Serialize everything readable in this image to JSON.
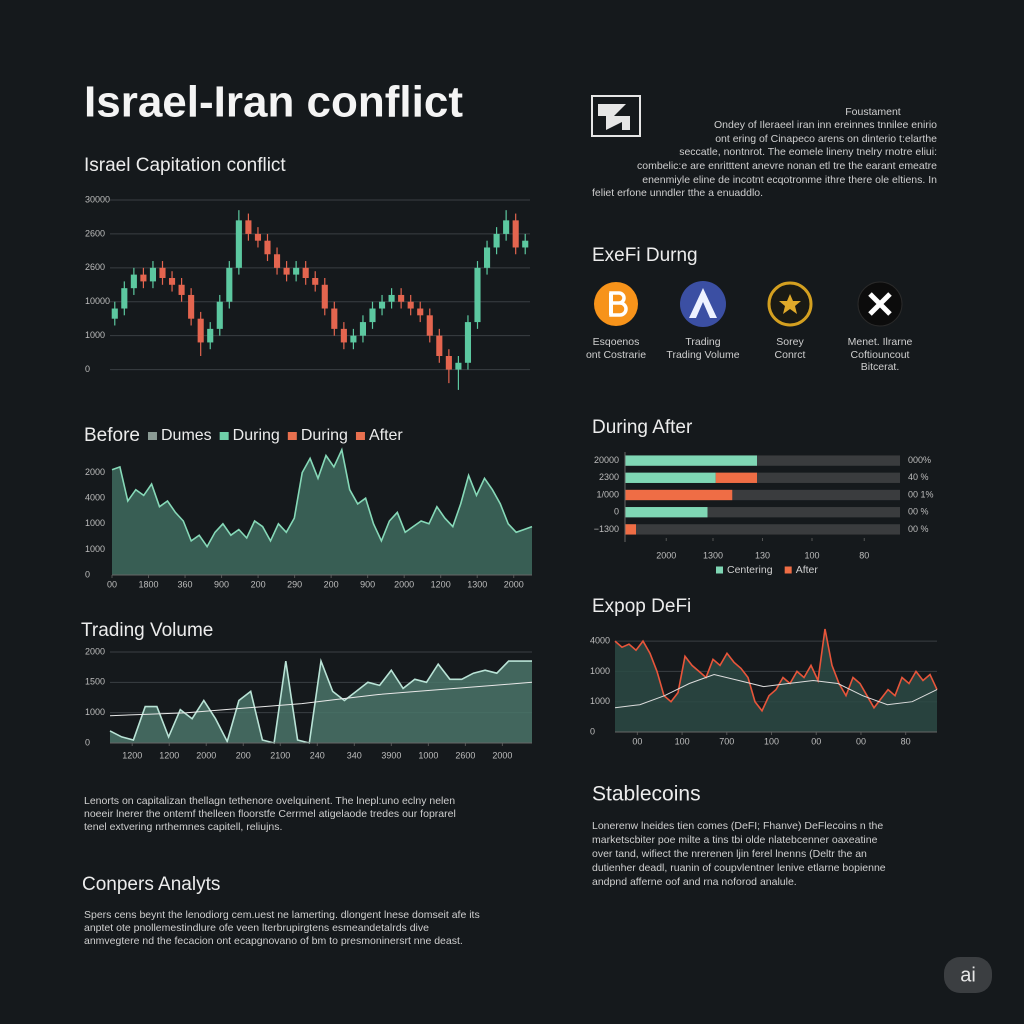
{
  "title": "Israel-Iran conflict",
  "intro": {
    "heading": "Foustament",
    "lines": [
      "Ondey of Ileraeel iran inn ereinnes tnnilee enirio",
      "ont ering of Cinapeco arens on dinterio t:elarthe",
      "seccatle, nontnrot. The eomele lineny tnelry rnotre eliui:",
      "combelic:e are enritttent anevre nonan etl tre the earant emeatre",
      "enenmiyle eline de incotnt ecqotronme ithre there ole eltiens. In",
      "feliet erfone unndler tthe a enuaddlo."
    ]
  },
  "icons_heading": "ExeFi Durng",
  "icons": [
    {
      "lines": [
        "Esqoenos",
        "ont Costrarie"
      ]
    },
    {
      "lines": [
        "Trading",
        "Trading Volume"
      ]
    },
    {
      "lines": [
        "Sorey",
        "Conrct"
      ]
    },
    {
      "lines": [
        "Menet. Ilrarne",
        "Coftiouncout",
        "Bitcerat."
      ]
    }
  ],
  "notes": {
    "lines": [
      "Lenorts on capitalizan thellagn tethenore ovelquinent. The lnepl:uno eclny nelen",
      "noeeir lnerer the ontemf thelleen floorstfe Cerrmel atigelaode tredes our foprarel",
      "tenel extvering nrthemnes capitell, reliujns."
    ]
  },
  "analysis": {
    "heading": "Conpers Analyts",
    "lines": [
      "Spers cens beynt the lenodiorg cem.uest ne lamerting. dlongent lnese domseit afe its",
      "anptet ote pnollemestindlure ofe veen lterbrupirgtens esmeandetalrds dive",
      "anmvegtere nd the fecacion ont ecapgnovano of bm to presmoninersrt nne deast."
    ]
  },
  "stablecoins": {
    "heading": "Stablecoins",
    "lines": [
      "Lonerenw lneides tien comes (DeFI; Fhanve) DeFlecoins n the",
      "marketscbiter poe milte a tins tbi olde nlatebcenner oaxeatine",
      "over tand, wifiect the nrerenen ljin ferel lnenns (Deltr the an",
      "dutienher deadl, ruanin of coupvlentner lenive etlarne bopienne",
      "andpnd afferne oof and rna noforod analule."
    ]
  },
  "badge": "ai",
  "chart_data": [
    {
      "type": "candlestick",
      "title": "Israel Capitation conflict",
      "open": [
        15,
        18,
        24,
        28,
        26,
        30,
        27,
        25,
        22,
        15,
        8,
        12,
        20,
        30,
        44,
        40,
        38,
        34,
        30,
        28,
        30,
        27,
        25,
        18,
        12,
        8,
        10,
        14,
        18,
        20,
        22,
        20,
        18,
        16,
        10,
        4,
        0,
        2,
        14,
        30,
        36,
        40,
        44,
        36
      ],
      "high": [
        20,
        26,
        30,
        30,
        32,
        32,
        29,
        27,
        24,
        17,
        14,
        22,
        32,
        47,
        46,
        42,
        40,
        36,
        32,
        32,
        32,
        29,
        27,
        20,
        14,
        12,
        16,
        20,
        22,
        24,
        24,
        22,
        20,
        18,
        12,
        6,
        4,
        16,
        32,
        38,
        42,
        47,
        46,
        40
      ],
      "low": [
        13,
        16,
        22,
        24,
        24,
        25,
        23,
        20,
        13,
        4,
        6,
        10,
        18,
        28,
        38,
        36,
        32,
        28,
        26,
        26,
        25,
        23,
        16,
        10,
        6,
        6,
        8,
        12,
        16,
        18,
        18,
        16,
        14,
        8,
        2,
        -4,
        -6,
        0,
        12,
        28,
        34,
        38,
        34,
        34
      ],
      "close": [
        18,
        24,
        28,
        26,
        30,
        27,
        25,
        22,
        15,
        8,
        12,
        20,
        30,
        44,
        40,
        38,
        34,
        30,
        28,
        30,
        27,
        25,
        18,
        12,
        8,
        10,
        14,
        18,
        20,
        22,
        20,
        18,
        16,
        10,
        4,
        0,
        2,
        14,
        30,
        36,
        40,
        44,
        36,
        38
      ],
      "up_color": "#5cc8a0",
      "down_color": "#e4654f",
      "ylim": [
        -7.5,
        50
      ],
      "yticks": [
        {
          "value": 50,
          "label": "30000"
        },
        {
          "value": 40,
          "label": "2600"
        },
        {
          "value": 30,
          "label": "2600"
        },
        {
          "value": 20,
          "label": "10000"
        },
        {
          "value": 10,
          "label": "1000"
        },
        0
      ],
      "grid": true
    },
    {
      "type": "area",
      "title": "Before",
      "legend": [
        {
          "name": "Dumes",
          "color": "#8a9a94"
        },
        {
          "name": "During",
          "color": "#6fcfa8"
        },
        {
          "name": "During",
          "color": "#e8704f"
        },
        {
          "name": "After",
          "color": "#e8704f"
        }
      ],
      "series": [
        {
          "color": "#86d9b8",
          "fill": "#3e6b5e",
          "values": [
            37,
            38,
            26,
            30,
            28,
            32,
            24,
            26,
            22,
            19,
            12,
            14,
            10,
            15,
            18,
            14,
            16,
            13,
            19,
            17,
            12,
            18,
            15,
            20,
            36,
            41,
            34,
            42,
            38,
            44,
            30,
            25,
            27,
            18,
            12,
            19,
            22,
            15,
            17,
            19,
            18,
            24,
            20,
            17,
            25,
            35,
            28,
            34,
            30,
            25,
            18,
            15,
            16,
            17
          ]
        }
      ],
      "ylim": [
        0,
        45
      ],
      "yticks": [
        {
          "value": 36,
          "label": "2000"
        },
        {
          "value": 27,
          "label": "4000"
        },
        {
          "value": 18,
          "label": "1000"
        },
        {
          "value": 9,
          "label": "1000"
        },
        0
      ],
      "xlim": [
        0,
        11.5
      ],
      "xticks": [
        {
          "value": 0,
          "label": "00"
        },
        {
          "value": 1,
          "label": "1800"
        },
        {
          "value": 2,
          "label": "360"
        },
        {
          "value": 3,
          "label": "900"
        },
        {
          "value": 4,
          "label": "200"
        },
        {
          "value": 5,
          "label": "290"
        },
        {
          "value": 6,
          "label": "200"
        },
        {
          "value": 7,
          "label": "900"
        },
        {
          "value": 8,
          "label": "2000"
        },
        {
          "value": 9,
          "label": "1200"
        },
        {
          "value": 10,
          "label": "1300"
        },
        {
          "value": 11,
          "label": "2000"
        }
      ],
      "grid": false
    },
    {
      "type": "area",
      "title": "Trading Volume",
      "series": [
        {
          "color": "#b9e3d6",
          "fill": "#4a7468",
          "values": [
            4,
            2,
            1,
            12,
            12,
            2,
            11,
            8,
            14,
            8,
            0.5,
            14,
            17,
            1,
            0,
            27,
            1,
            0,
            27,
            17,
            14,
            17,
            20,
            19,
            24,
            18,
            21,
            20,
            26,
            21,
            21,
            23,
            24,
            23,
            27,
            27,
            27
          ]
        },
        {
          "kind": "line",
          "color": "#e8e8e8",
          "values": [
            9,
            9.5,
            10,
            11,
            12,
            13,
            14.5,
            16,
            17,
            18,
            19,
            20
          ]
        }
      ],
      "ylim": [
        0,
        30
      ],
      "yticks": [
        {
          "value": 30,
          "label": "2000"
        },
        {
          "value": 20,
          "label": "1500"
        },
        {
          "value": 10,
          "label": "1000"
        },
        0
      ],
      "xlim": [
        -0.6,
        10.8
      ],
      "xticks": [
        {
          "value": 0,
          "label": "1200"
        },
        {
          "value": 1,
          "label": "1200"
        },
        {
          "value": 2,
          "label": "2000"
        },
        {
          "value": 3,
          "label": "200"
        },
        {
          "value": 4,
          "label": "2100"
        },
        {
          "value": 5,
          "label": "240"
        },
        {
          "value": 6,
          "label": "340"
        },
        {
          "value": 7,
          "label": "3900"
        },
        {
          "value": 8,
          "label": "1000"
        },
        {
          "value": 9,
          "label": "2600"
        },
        {
          "value": 10,
          "label": "2000"
        }
      ],
      "grid": true
    },
    {
      "type": "hbar",
      "title": "During After",
      "categories": [
        "20000",
        "2300",
        "1/000",
        "0",
        "−1300"
      ],
      "series": [
        {
          "name": "Centering",
          "color": "#7fd6b4",
          "values": [
            48,
            33,
            0,
            30,
            0
          ]
        },
        {
          "name": "After",
          "color": "#ef6d45",
          "values": [
            0,
            15,
            39,
            0,
            4
          ]
        }
      ],
      "row_labels": [
        "000%",
        "40 %",
        "00 1%",
        "00 %",
        "00 %"
      ],
      "track_color": "#3a3c3e",
      "xlim": [
        0,
        100
      ],
      "xticks": [
        {
          "value": 15,
          "label": "2000"
        },
        {
          "value": 32,
          "label": "1300"
        },
        {
          "value": 50,
          "label": "130"
        },
        {
          "value": 68,
          "label": "100"
        },
        {
          "value": 87,
          "label": "80"
        }
      ],
      "grid": false
    },
    {
      "type": "area",
      "title": "Expop DeFi",
      "series": [
        {
          "color": "#e8553a",
          "fill": "#2c4a44",
          "values": [
            30,
            28,
            29,
            27,
            30,
            26,
            20,
            12,
            10,
            13,
            25,
            22,
            20,
            18,
            24,
            22,
            26,
            23,
            21,
            18,
            10,
            7,
            12,
            14,
            18,
            16,
            20,
            18,
            22,
            17,
            34,
            22,
            16,
            12,
            18,
            16,
            12,
            8,
            11,
            14,
            12,
            18,
            16,
            20,
            17,
            19,
            14
          ]
        },
        {
          "kind": "line",
          "color": "#dddddd",
          "values": [
            8,
            9,
            12,
            16,
            19,
            17,
            15,
            16,
            17,
            16,
            12,
            9,
            10,
            14
          ]
        }
      ],
      "ylim": [
        0,
        35
      ],
      "yticks": [
        {
          "value": 30,
          "label": "4000"
        },
        {
          "value": 20,
          "label": "1000"
        },
        {
          "value": 10,
          "label": "1000"
        },
        0
      ],
      "xlim": [
        -0.5,
        6.7
      ],
      "xticks": [
        {
          "value": 0,
          "label": "00"
        },
        {
          "value": 1,
          "label": "100"
        },
        {
          "value": 2,
          "label": "700"
        },
        {
          "value": 3,
          "label": "100"
        },
        {
          "value": 4,
          "label": "00"
        },
        {
          "value": 5,
          "label": "00"
        },
        {
          "value": 6,
          "label": "80"
        }
      ],
      "grid": true
    }
  ]
}
